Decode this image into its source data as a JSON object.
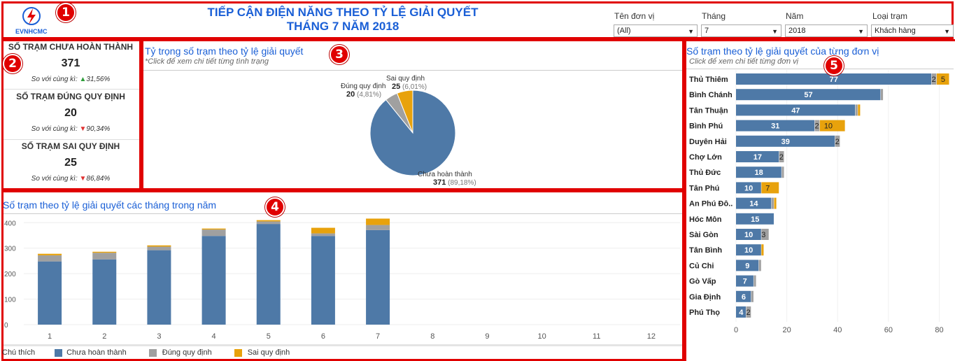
{
  "header": {
    "logo_text": "EVNHCMC",
    "title_line1": "TIẾP CẬN ĐIỆN NĂNG THEO TỶ LỆ GIẢI QUYẾT",
    "title_line2": "THÁNG 7 NĂM 2018"
  },
  "filters": [
    {
      "label": "Tên đơn vị",
      "value": "(All)"
    },
    {
      "label": "Tháng",
      "value": "7"
    },
    {
      "label": "Năm",
      "value": "2018"
    },
    {
      "label": "Loại trạm",
      "value": "Khách hàng"
    }
  ],
  "badges": [
    "1",
    "2",
    "3",
    "4",
    "5"
  ],
  "kpis": [
    {
      "title": "SỐ TRẠM CHƯA HOÀN THÀNH",
      "value": "371",
      "compare_label": "So với cùng kì:",
      "arrow": "▲",
      "change": "31,56%",
      "direction": "up"
    },
    {
      "title": "SỐ TRẠM ĐÚNG QUY ĐỊNH",
      "value": "20",
      "compare_label": "So với cùng kì:",
      "arrow": "▼",
      "change": "90,34%",
      "direction": "down"
    },
    {
      "title": "SỐ TRẠM SAI QUY ĐỊNH",
      "value": "25",
      "compare_label": "So với cùng kì:",
      "arrow": "▼",
      "change": "86,84%",
      "direction": "down"
    }
  ],
  "colors": {
    "blue": "#4e79a7",
    "gray": "#a0a0a0",
    "orange": "#e8a20c",
    "title": "#1a5fd6",
    "border": "#e00000"
  },
  "pie_panel": {
    "title": "Tỷ trọng số trạm theo tỷ lệ giải quyết",
    "subtitle": "*Click để xem chi tiết từng tình trạng"
  },
  "monthly_panel": {
    "title": "Số trạm theo tỷ lệ giải quyết các tháng trong năm"
  },
  "unit_panel": {
    "title": "Số trạm theo tỷ lệ giải quyết của từng đơn vị",
    "subtitle": "Click để xem chi tiết từng đơn vị"
  },
  "legend": {
    "title": "Chú thích",
    "items": [
      "Chưa hoàn thành",
      "Đúng quy định",
      "Sai quy định"
    ]
  },
  "chart_data": [
    {
      "type": "pie",
      "slices": [
        {
          "name": "Chưa hoàn thành",
          "value": 371,
          "pct": "89,18%"
        },
        {
          "name": "Đúng quy định",
          "value": 20,
          "pct": "4,81%"
        },
        {
          "name": "Sai quy định",
          "value": 25,
          "pct": "6,01%"
        }
      ]
    },
    {
      "type": "bar",
      "stacked": true,
      "categories": [
        "1",
        "2",
        "3",
        "4",
        "5",
        "6",
        "7",
        "8",
        "9",
        "10",
        "11",
        "12"
      ],
      "series": [
        {
          "name": "Chưa hoàn thành",
          "values": [
            248,
            256,
            292,
            348,
            395,
            348,
            371,
            0,
            0,
            0,
            0,
            0
          ]
        },
        {
          "name": "Đúng quy định",
          "values": [
            24,
            26,
            14,
            25,
            10,
            10,
            20,
            0,
            0,
            0,
            0,
            0
          ]
        },
        {
          "name": "Sai quy định",
          "values": [
            6,
            4,
            5,
            4,
            5,
            22,
            25,
            0,
            0,
            0,
            0,
            0
          ]
        }
      ],
      "yticks": [
        0,
        100,
        200,
        300,
        400
      ],
      "ylim": [
        0,
        420
      ]
    },
    {
      "type": "bar",
      "orientation": "horizontal",
      "stacked": true,
      "categories": [
        "Thủ Thiêm",
        "Bình Chánh",
        "Tân Thuận",
        "Bình Phú",
        "Duyên Hải",
        "Chợ Lớn",
        "Thủ Đức",
        "Tân Phú",
        "An Phú Đô..",
        "Hóc Môn",
        "Sài Gòn",
        "Tân Bình",
        "Củ Chi",
        "Gò Vấp",
        "Gia Định",
        "Phú Thọ"
      ],
      "series": [
        {
          "name": "Chưa hoàn thành",
          "values": [
            77,
            57,
            47,
            31,
            39,
            17,
            18,
            10,
            14,
            15,
            10,
            10,
            9,
            7,
            6,
            4
          ]
        },
        {
          "name": "Đúng quy định",
          "values": [
            2,
            1,
            1,
            2,
            2,
            2,
            1,
            0,
            1,
            0,
            3,
            0,
            1,
            1,
            1,
            2
          ]
        },
        {
          "name": "Sai quy định",
          "values": [
            5,
            0,
            1,
            10,
            0,
            0,
            0,
            7,
            1,
            0,
            0,
            1,
            0,
            0,
            0,
            0
          ]
        }
      ],
      "series_labels": [
        [
          "77",
          "57",
          "47",
          "31",
          "39",
          "17",
          "18",
          "10",
          "14",
          "15",
          "10",
          "10",
          "9",
          "7",
          "6",
          "4"
        ],
        [
          "2",
          "",
          "",
          "2",
          "2",
          "2",
          "",
          "",
          "",
          "",
          "3",
          "",
          "",
          "",
          "",
          "2"
        ],
        [
          "5",
          "",
          "",
          "10",
          "",
          "",
          "",
          "7",
          "",
          "",
          "",
          "",
          "",
          "",
          "",
          ""
        ]
      ],
      "xticks": [
        0,
        20,
        40,
        60,
        80
      ],
      "xlim": [
        0,
        84
      ]
    }
  ]
}
